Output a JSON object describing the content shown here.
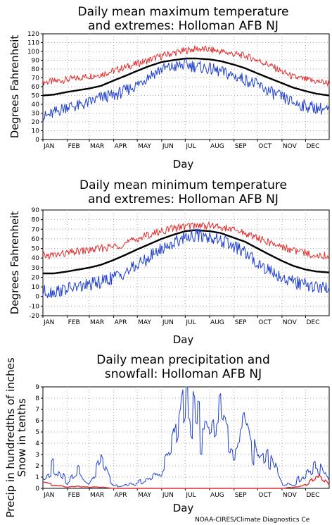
{
  "credit": "NOAA-CIRES/Climate Diagnostics Ce",
  "colors": {
    "mean": "#000000",
    "max_extreme": "#e03030",
    "min_extreme": "#2040d0",
    "grid": "#aaaaaa",
    "precip": "#2040d0",
    "snow": "#e03030"
  },
  "chart_data": [
    {
      "type": "line",
      "title": [
        "Daily mean maximum temperature",
        "and extremes: Holloman AFB NJ"
      ],
      "xlabel": "Day",
      "ylabel": "Degrees Fahrenheit",
      "ylim": [
        0,
        120
      ],
      "yticks": [
        0,
        10,
        20,
        30,
        40,
        50,
        60,
        70,
        80,
        90,
        100,
        110,
        120
      ],
      "xticklabels": [
        "JAN",
        "FEB",
        "MAR",
        "APR",
        "MAY",
        "JUN",
        "JUL",
        "AUG",
        "SEP",
        "OCT",
        "NOV",
        "DEC"
      ],
      "grid": true,
      "x": [
        1,
        15,
        32,
        46,
        60,
        75,
        91,
        105,
        121,
        135,
        152,
        166,
        182,
        196,
        213,
        227,
        244,
        258,
        274,
        288,
        305,
        319,
        335,
        349,
        365
      ],
      "series": [
        {
          "role": "max_extreme",
          "values": [
            65,
            66,
            68,
            70,
            72,
            74,
            78,
            82,
            86,
            90,
            95,
            98,
            101,
            103,
            102,
            100,
            97,
            95,
            90,
            85,
            77,
            71,
            68,
            66,
            64
          ]
        },
        {
          "role": "mean",
          "values": [
            50,
            51,
            54,
            56,
            58,
            61,
            67,
            72,
            78,
            83,
            88,
            90,
            92,
            92,
            91,
            89,
            85,
            81,
            75,
            70,
            64,
            59,
            55,
            52,
            50
          ]
        },
        {
          "role": "min_extreme",
          "values": [
            25,
            30,
            38,
            38,
            42,
            48,
            50,
            55,
            62,
            72,
            80,
            82,
            85,
            83,
            80,
            77,
            72,
            68,
            62,
            55,
            48,
            42,
            38,
            36,
            33
          ]
        }
      ]
    },
    {
      "type": "line",
      "title": [
        "Daily mean minimum temperature",
        "and extremes: Holloman AFB NJ"
      ],
      "xlabel": "Day",
      "ylabel": "Degrees Fahrenheit",
      "ylim": [
        -20,
        90
      ],
      "yticks": [
        -20,
        -10,
        0,
        10,
        20,
        30,
        40,
        50,
        60,
        70,
        80,
        90
      ],
      "xticklabels": [
        "JAN",
        "FEB",
        "MAR",
        "APR",
        "MAY",
        "JUN",
        "JUL",
        "AUG",
        "SEP",
        "OCT",
        "NOV",
        "DEC"
      ],
      "grid": true,
      "x": [
        1,
        15,
        32,
        46,
        60,
        75,
        91,
        105,
        121,
        135,
        152,
        166,
        182,
        196,
        213,
        227,
        244,
        258,
        274,
        288,
        305,
        319,
        335,
        349,
        365
      ],
      "series": [
        {
          "role": "max_extreme",
          "values": [
            42,
            43,
            45,
            47,
            48,
            50,
            52,
            55,
            60,
            64,
            68,
            71,
            73,
            74,
            74,
            72,
            69,
            66,
            61,
            56,
            52,
            48,
            45,
            43,
            42
          ]
        },
        {
          "role": "mean",
          "values": [
            24,
            24,
            26,
            28,
            30,
            33,
            38,
            43,
            49,
            54,
            60,
            64,
            68,
            69,
            68,
            66,
            61,
            57,
            50,
            44,
            37,
            32,
            28,
            26,
            25
          ]
        },
        {
          "role": "min_extreme",
          "values": [
            5,
            5,
            8,
            10,
            12,
            15,
            20,
            25,
            32,
            40,
            50,
            55,
            63,
            64,
            62,
            58,
            52,
            45,
            35,
            28,
            20,
            15,
            12,
            10,
            8
          ]
        }
      ]
    },
    {
      "type": "line",
      "title": [
        "Daily mean precipitation and",
        "snowfall: Holloman AFB NJ"
      ],
      "xlabel": "Day",
      "ylabel": [
        "Precip in hundredths of inches",
        "Snow in tenths"
      ],
      "ylim": [
        0,
        9
      ],
      "yticks": [
        0,
        1,
        2,
        3,
        4,
        5,
        6,
        7,
        8,
        9
      ],
      "xticklabels": [
        "JAN",
        "FEB",
        "MAR",
        "APR",
        "MAY",
        "JUN",
        "JUL",
        "AUG",
        "SEP",
        "OCT",
        "NOV",
        "DEC"
      ],
      "grid": true,
      "x": [
        1,
        15,
        32,
        46,
        60,
        75,
        91,
        105,
        121,
        135,
        152,
        166,
        182,
        196,
        213,
        227,
        244,
        258,
        274,
        288,
        305,
        319,
        335,
        349,
        365
      ],
      "series": [
        {
          "role": "precip",
          "values": [
            1.0,
            2.2,
            0.5,
            1.8,
            0.4,
            2.2,
            0.2,
            0.3,
            0.5,
            0.8,
            1.8,
            3.5,
            8.3,
            5.5,
            5.0,
            6.2,
            4.5,
            6.0,
            2.0,
            3.0,
            0.5,
            0.3,
            1.5,
            2.5,
            0.5
          ]
        },
        {
          "role": "snow",
          "values": [
            0.5,
            0.3,
            0.1,
            0.2,
            0.1,
            0.1,
            0.0,
            0.0,
            0.0,
            0.0,
            0.0,
            0.0,
            0.0,
            0.0,
            0.0,
            0.0,
            0.0,
            0.0,
            0.0,
            0.0,
            0.0,
            0.1,
            0.3,
            1.2,
            0.3
          ]
        }
      ]
    }
  ]
}
